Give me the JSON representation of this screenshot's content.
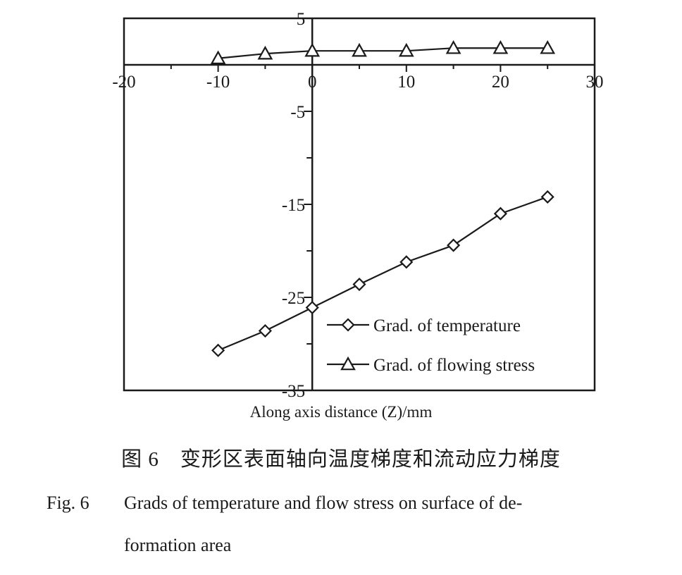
{
  "chart_data": {
    "type": "line",
    "xlabel": "Along axis distance (Z)/mm",
    "ylabel": "",
    "xlim": [
      -20,
      30
    ],
    "ylim": [
      -35,
      5
    ],
    "x_ticks": [
      -20,
      -10,
      0,
      10,
      20,
      30
    ],
    "x_tick_labels": [
      "-20",
      "-10",
      "0",
      "10",
      "20",
      "30"
    ],
    "y_ticks": [
      5,
      -5,
      -15,
      -25,
      -35
    ],
    "y_tick_labels": [
      "5",
      "-5",
      "-15",
      "-25",
      "-35"
    ],
    "grid": false,
    "legend_position": "bottom-right",
    "series": [
      {
        "name": "Grad. of temperature",
        "marker": "diamond",
        "x": [
          -10,
          -5,
          0,
          5,
          10,
          15,
          20,
          25
        ],
        "y": [
          -30.7,
          -28.6,
          -26.1,
          -23.6,
          -21.2,
          -19.4,
          -16.0,
          -14.2
        ]
      },
      {
        "name": "Grad. of flowing stress",
        "marker": "triangle",
        "x": [
          -10,
          -5,
          0,
          5,
          10,
          15,
          20,
          25
        ],
        "y": [
          0.7,
          1.2,
          1.5,
          1.5,
          1.5,
          1.8,
          1.8,
          1.8
        ]
      }
    ]
  },
  "captions": {
    "chinese": "图 6　变形区表面轴向温度梯度和流动应力梯度",
    "fig_number": "Fig. 6",
    "english_line1": "Grads of temperature and flow stress on surface of de-",
    "english_line2": "formation area"
  }
}
